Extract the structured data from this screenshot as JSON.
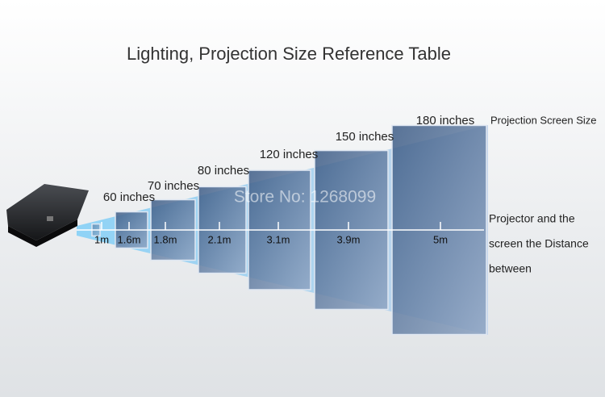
{
  "header": {
    "title": "Lighting, Projection Size Reference Table"
  },
  "screen_sizes": [
    "60 inches",
    "70 inches",
    "80 inches",
    "120 inches",
    "150 inches",
    "180 inches"
  ],
  "distances": [
    "1m",
    "1.6m",
    "1.8m",
    "2.1m",
    "3.1m",
    "3.9m",
    "5m"
  ],
  "watermark": "Store No: 1268099",
  "legend": {
    "screen_size": "Projection Screen Size",
    "distance_lines": [
      "Projector and the",
      "screen the Distance",
      "between"
    ]
  }
}
